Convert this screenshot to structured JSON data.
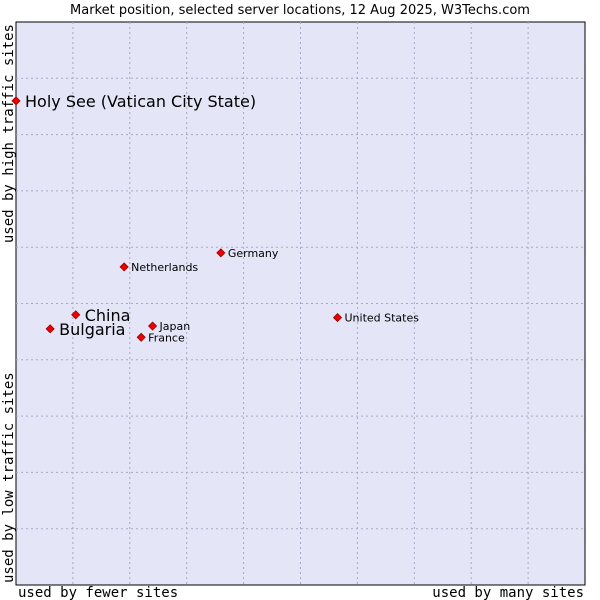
{
  "chart_data": {
    "type": "scatter",
    "title": "Market position, selected server locations, 12 Aug 2025, W3Techs.com",
    "xlabel_left": "used by fewer sites",
    "xlabel_right": "used by many sites",
    "ylabel_bottom": "used by low traffic sites",
    "ylabel_top": "used by high traffic sites",
    "xlim": [
      0,
      10
    ],
    "ylim": [
      0,
      10
    ],
    "grid": true,
    "points": [
      {
        "label": "Holy See (Vatican City State)",
        "x": 0.0,
        "y": 8.6,
        "emphasis": "large"
      },
      {
        "label": "Germany",
        "x": 3.6,
        "y": 5.9,
        "emphasis": "small"
      },
      {
        "label": "Netherlands",
        "x": 1.9,
        "y": 5.65,
        "emphasis": "small"
      },
      {
        "label": "China",
        "x": 1.05,
        "y": 4.8,
        "emphasis": "large"
      },
      {
        "label": "United States",
        "x": 5.65,
        "y": 4.75,
        "emphasis": "small"
      },
      {
        "label": "Japan",
        "x": 2.4,
        "y": 4.6,
        "emphasis": "small"
      },
      {
        "label": "Bulgaria",
        "x": 0.6,
        "y": 4.55,
        "emphasis": "large"
      },
      {
        "label": "France",
        "x": 2.2,
        "y": 4.4,
        "emphasis": "small"
      }
    ],
    "colors": {
      "plot_background": "#e4e6f8",
      "grid": "#a8a8c8",
      "marker": "#ee0000",
      "marker_edge": "#990000"
    }
  }
}
